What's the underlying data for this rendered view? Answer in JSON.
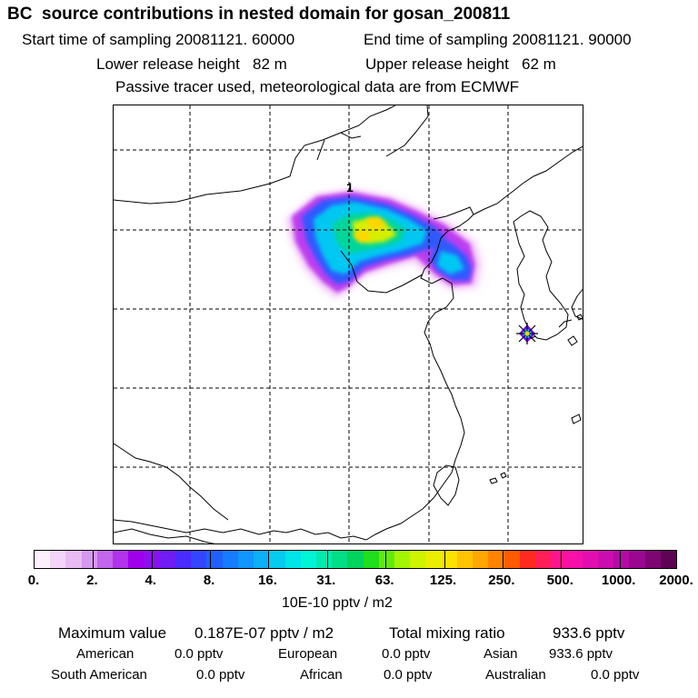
{
  "header": {
    "title": "BC  source contributions in nested domain for gosan_200811",
    "start_label": "Start time of sampling 20081121. 60000",
    "end_label": "End time of sampling 20081121. 90000",
    "lower_release": "Lower release height   82 m",
    "upper_release": "Upper release height   62 m",
    "tracer_note": "Passive tracer used, meteorological data are from ECMWF"
  },
  "map": {
    "marker_label": "1",
    "receptor_icon": "star-marker-icon"
  },
  "colorbar": {
    "tick_labels": [
      "0.",
      "2.",
      "4.",
      "8.",
      "16.",
      "31.",
      "63.",
      "125.",
      "250.",
      "500.",
      "1000.",
      "2000."
    ],
    "unit_label": "10E-10 pptv / m2",
    "colors": [
      "#fdf0fd",
      "#f3d6f7",
      "#e8bbf2",
      "#d599ef",
      "#c266ec",
      "#b233ea",
      "#a000ec",
      "#8a12f0",
      "#6f1cf5",
      "#4a2bff",
      "#3346ff",
      "#2060ff",
      "#177cff",
      "#1196ff",
      "#0bb0f5",
      "#05cbef",
      "#00e5e8",
      "#00f5d6",
      "#00ebb0",
      "#00df86",
      "#00d35e",
      "#1ede1e",
      "#62ea10",
      "#a4f405",
      "#cdf400",
      "#eaee00",
      "#ffe300",
      "#ffc400",
      "#ffa600",
      "#ff8400",
      "#ff5a00",
      "#ff2a1e",
      "#ff1e58",
      "#ff1490",
      "#f611a8",
      "#e20eaf",
      "#cc0caf",
      "#b50aa6",
      "#9b0890",
      "#7d0670",
      "#5e0454"
    ]
  },
  "stats": {
    "max_label": "Maximum value",
    "max_value": "0.187E-07 pptv / m2",
    "total_label": "Total mixing ratio",
    "total_value": "933.6 pptv",
    "regions": [
      {
        "name": "American",
        "value": "0.0 pptv"
      },
      {
        "name": "European",
        "value": "0.0 pptv"
      },
      {
        "name": "Asian",
        "value": "933.6 pptv"
      },
      {
        "name": "South American",
        "value": "0.0 pptv"
      },
      {
        "name": "African",
        "value": "0.0 pptv"
      },
      {
        "name": "Australian",
        "value": "0.0 pptv"
      }
    ]
  }
}
